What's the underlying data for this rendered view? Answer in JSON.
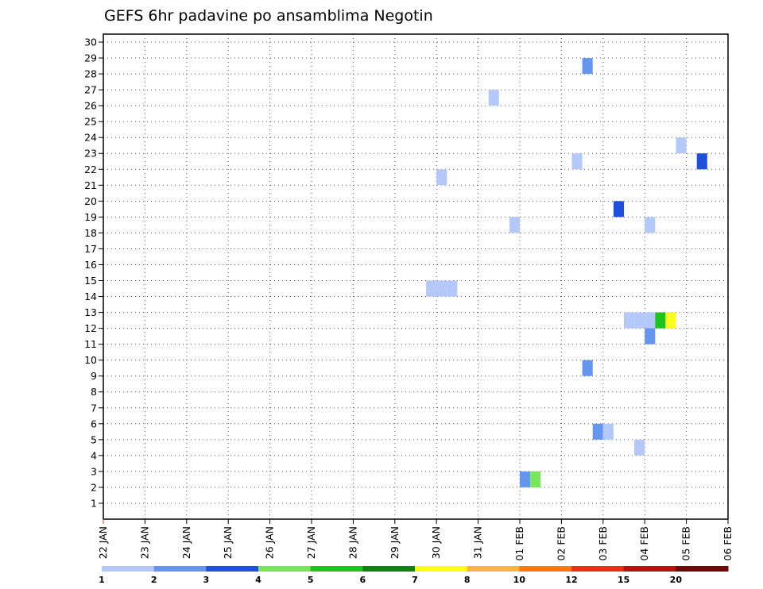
{
  "chart_data": {
    "type": "heatmap",
    "title": "GEFS 6hr padavine po ansamblima Negotin",
    "x_tick_labels": [
      "22 JAN",
      "23 JAN",
      "24 JAN",
      "25 JAN",
      "26 JAN",
      "27 JAN",
      "28 JAN",
      "29 JAN",
      "30 JAN",
      "31 JAN",
      "01 FEB",
      "02 FEB",
      "03 FEB",
      "04 FEB",
      "05 FEB",
      "06 FEB"
    ],
    "x_unit": "6-hour steps from 22 JAN 00Z",
    "xlim": [
      0,
      60
    ],
    "y_tick_labels": [
      1,
      2,
      3,
      4,
      5,
      6,
      7,
      8,
      9,
      10,
      11,
      12,
      13,
      14,
      15,
      16,
      17,
      18,
      19,
      20,
      21,
      22,
      23,
      24,
      25,
      26,
      27,
      28,
      29,
      30
    ],
    "ylim": [
      0,
      30
    ],
    "grid": true,
    "legend": {
      "placement": "bottom",
      "labels": [
        "1",
        "2",
        "3",
        "4",
        "5",
        "6",
        "7",
        "8",
        "10",
        "12",
        "15",
        "20"
      ],
      "colors": [
        "#b4c8fa",
        "#6496f0",
        "#1e50dc",
        "#78e65a",
        "#1ec31e",
        "#0f820f",
        "#ffff1e",
        "#ffb43c",
        "#ff780f",
        "#e63214",
        "#b4140f",
        "#6e0a0a"
      ]
    },
    "cells": [
      {
        "x": 47,
        "y": 29,
        "color": "#6496f0"
      },
      {
        "x": 38,
        "y": 27,
        "color": "#b4c8fa"
      },
      {
        "x": 56,
        "y": 24,
        "color": "#b4c8fa"
      },
      {
        "x": 46,
        "y": 23,
        "color": "#b4c8fa"
      },
      {
        "x": 58,
        "y": 23,
        "color": "#1e50dc"
      },
      {
        "x": 33,
        "y": 22,
        "color": "#b4c8fa"
      },
      {
        "x": 50,
        "y": 20,
        "color": "#1e50dc"
      },
      {
        "x": 40,
        "y": 19,
        "color": "#b4c8fa"
      },
      {
        "x": 53,
        "y": 19,
        "color": "#b4c8fa"
      },
      {
        "x": 32,
        "y": 15,
        "color": "#b4c8fa"
      },
      {
        "x": 33,
        "y": 15,
        "color": "#b4c8fa"
      },
      {
        "x": 34,
        "y": 15,
        "color": "#b4c8fa"
      },
      {
        "x": 51,
        "y": 13,
        "color": "#b4c8fa"
      },
      {
        "x": 52,
        "y": 13,
        "color": "#b4c8fa"
      },
      {
        "x": 53,
        "y": 13,
        "color": "#b4c8fa"
      },
      {
        "x": 54,
        "y": 13,
        "color": "#1ec31e"
      },
      {
        "x": 55,
        "y": 13,
        "color": "#ffff1e"
      },
      {
        "x": 53,
        "y": 12,
        "color": "#6496f0"
      },
      {
        "x": 47,
        "y": 10,
        "color": "#6496f0"
      },
      {
        "x": 48,
        "y": 6,
        "color": "#6496f0"
      },
      {
        "x": 49,
        "y": 6,
        "color": "#b4c8fa"
      },
      {
        "x": 52,
        "y": 5,
        "color": "#b4c8fa"
      },
      {
        "x": 41,
        "y": 3,
        "color": "#6496f0"
      },
      {
        "x": 42,
        "y": 3,
        "color": "#78e65a"
      }
    ]
  }
}
